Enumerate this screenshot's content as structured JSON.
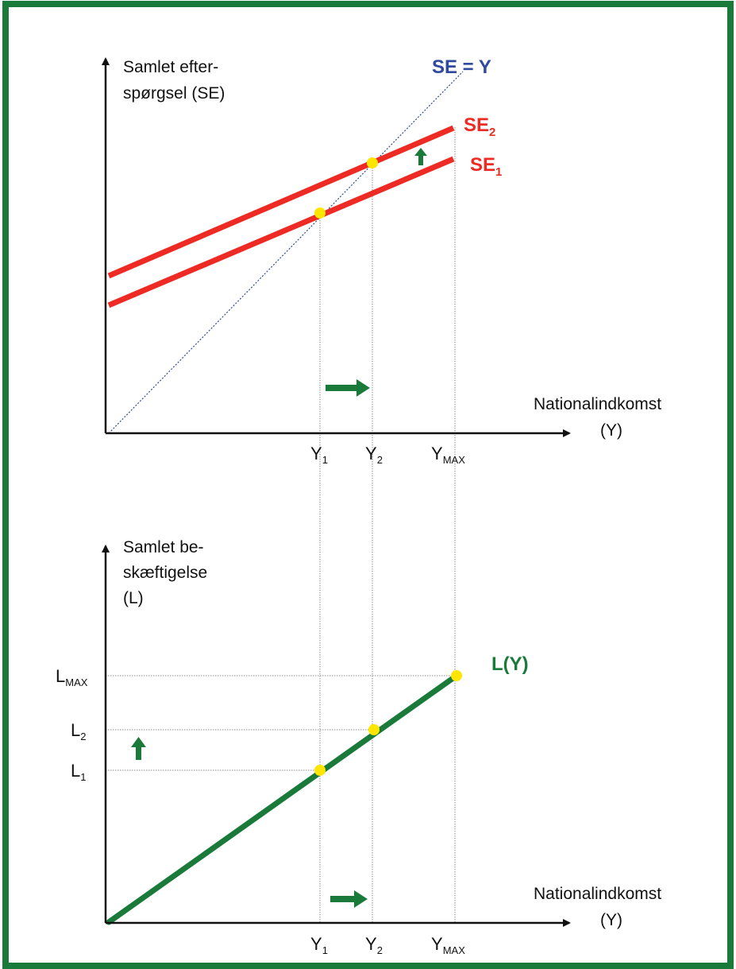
{
  "colors": {
    "border": "#1a7a3a",
    "red": "#ee2a24",
    "blue": "#2e4a9e",
    "green": "#1a7a3a",
    "yellow": "#ffe600",
    "axis": "#111111",
    "guide": "#8c8c8c"
  },
  "top": {
    "ylabel_line1": "Samlet efter-",
    "ylabel_line2": "spørgsel (SE)",
    "xlabel_line1": "Nationalindkomst",
    "xlabel_line2": "(Y)",
    "diag_label": "SE = Y",
    "se2_label": "SE",
    "se2_sub": "2",
    "se1_label": "SE",
    "se1_sub": "1",
    "ticks": [
      {
        "main": "Y",
        "sub": "1"
      },
      {
        "main": "Y",
        "sub": "2"
      },
      {
        "main": "Y",
        "sub": "MAX"
      }
    ],
    "shift_up_icon": "arrow-up-icon",
    "shift_right_icon": "arrow-right-icon"
  },
  "bottom": {
    "ylabel_line1": "Samlet be-",
    "ylabel_line2": "skæftigelse",
    "ylabel_line3": "(L)",
    "xlabel_line1": "Nationalindkomst",
    "xlabel_line2": "(Y)",
    "curve_label": "L(Y)",
    "yticks": [
      {
        "main": "L",
        "sub": "MAX"
      },
      {
        "main": "L",
        "sub": "2"
      },
      {
        "main": "L",
        "sub": "1"
      }
    ],
    "xticks": [
      {
        "main": "Y",
        "sub": "1"
      },
      {
        "main": "Y",
        "sub": "2"
      },
      {
        "main": "Y",
        "sub": "MAX"
      }
    ],
    "shift_up_icon": "arrow-up-icon",
    "shift_right_icon": "arrow-right-icon"
  }
}
